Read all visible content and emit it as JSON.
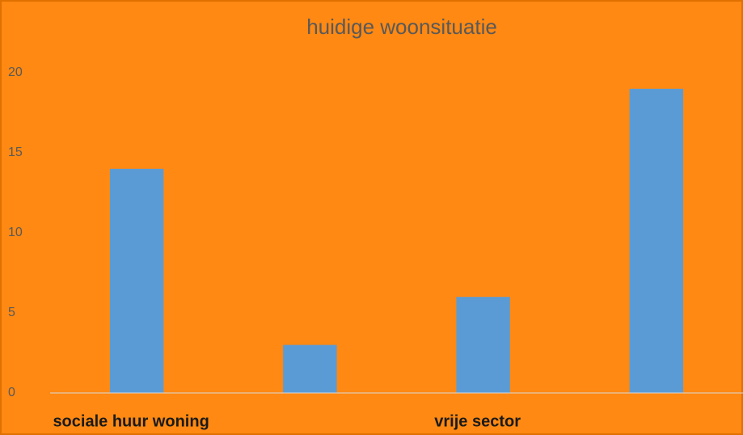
{
  "chart_data": {
    "type": "bar",
    "title": "huidige woonsituatie",
    "categories": [
      "sociale huur woning",
      null,
      "vrije sector",
      null
    ],
    "values": [
      14,
      3,
      6,
      19
    ],
    "color": "#5b9bd5",
    "ylim": [
      0,
      20
    ],
    "yticks": [
      0,
      5,
      10,
      15,
      20
    ],
    "grid": false
  }
}
